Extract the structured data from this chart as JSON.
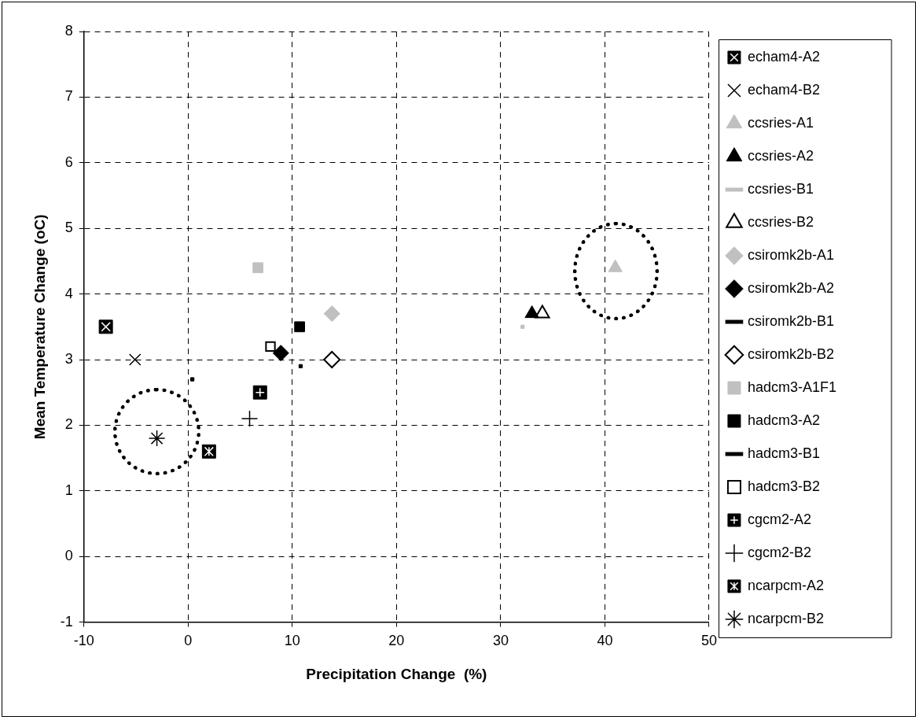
{
  "chart_data": {
    "type": "scatter",
    "xlabel": "Precipitation Change  (%)",
    "ylabel": "Mean Temperature Change (oC)",
    "xlim": [
      -10,
      50
    ],
    "xticks": [
      -10,
      0,
      10,
      20,
      30,
      40,
      50
    ],
    "ylim": [
      -1,
      8
    ],
    "yticks": [
      -1,
      0,
      1,
      2,
      3,
      4,
      5,
      6,
      7,
      8
    ],
    "grid": true,
    "legend": "right",
    "series": [
      {
        "name": "echam4-A2",
        "color": "#000000",
        "marker": "square-x",
        "x": [
          -7.9
        ],
        "values": [
          3.5
        ]
      },
      {
        "name": "echam4-B2",
        "color": "#000000",
        "marker": "x",
        "x": [
          -5.1
        ],
        "values": [
          3.0
        ]
      },
      {
        "name": "ccsries-A1",
        "color": "#c0c0c0",
        "marker": "triangle",
        "x": [
          41.0
        ],
        "values": [
          4.4
        ]
      },
      {
        "name": "ccsries-A2",
        "color": "#000000",
        "marker": "triangle",
        "x": [
          33.0
        ],
        "values": [
          3.7
        ]
      },
      {
        "name": "ccsries-B1",
        "color": "#c0c0c0",
        "x": [
          32.1
        ],
        "values": [
          3.5
        ]
      },
      {
        "name": "ccsries-B2",
        "color": "#000000",
        "marker": "triangle-open",
        "x": [
          34.0
        ],
        "values": [
          3.7
        ]
      },
      {
        "name": "csiromk2b-A1",
        "color": "#c0c0c0",
        "marker": "diamond",
        "x": [
          13.8
        ],
        "values": [
          3.7
        ]
      },
      {
        "name": "csiromk2b-A2",
        "color": "#000000",
        "marker": "diamond",
        "x": [
          8.9
        ],
        "values": [
          3.1
        ]
      },
      {
        "name": "csiromk2b-B1",
        "color": "#000000",
        "x": [
          10.8
        ],
        "values": [
          2.9
        ]
      },
      {
        "name": "csiromk2b-B2",
        "color": "#000000",
        "marker": "diamond-open",
        "x": [
          13.8
        ],
        "values": [
          3.0
        ]
      },
      {
        "name": "hadcm3-A1F1",
        "color": "#c0c0c0",
        "marker": "square",
        "x": [
          6.7
        ],
        "values": [
          4.4
        ]
      },
      {
        "name": "hadcm3-A2",
        "color": "#000000",
        "marker": "square",
        "x": [
          10.7
        ],
        "values": [
          3.5
        ]
      },
      {
        "name": "hadcm3-B1",
        "color": "#000000",
        "x": [
          0.4
        ],
        "values": [
          2.7
        ]
      },
      {
        "name": "hadcm3-B2",
        "color": "#000000",
        "marker": "square-open",
        "x": [
          7.9
        ],
        "values": [
          3.2
        ]
      },
      {
        "name": "cgcm2-A2",
        "color": "#000000",
        "marker": "square-plus",
        "x": [
          6.9
        ],
        "values": [
          2.5
        ]
      },
      {
        "name": "cgcm2-B2",
        "color": "#000000",
        "marker": "plus",
        "x": [
          5.9
        ],
        "values": [
          2.1
        ]
      },
      {
        "name": "ncarpcm-A2",
        "color": "#000000",
        "marker": "square-star",
        "x": [
          2.0
        ],
        "values": [
          1.6
        ]
      },
      {
        "name": "ncarpcm-B2",
        "color": "#000000",
        "marker": "cross",
        "x": [
          -3.0
        ],
        "values": [
          1.8
        ]
      }
    ]
  }
}
